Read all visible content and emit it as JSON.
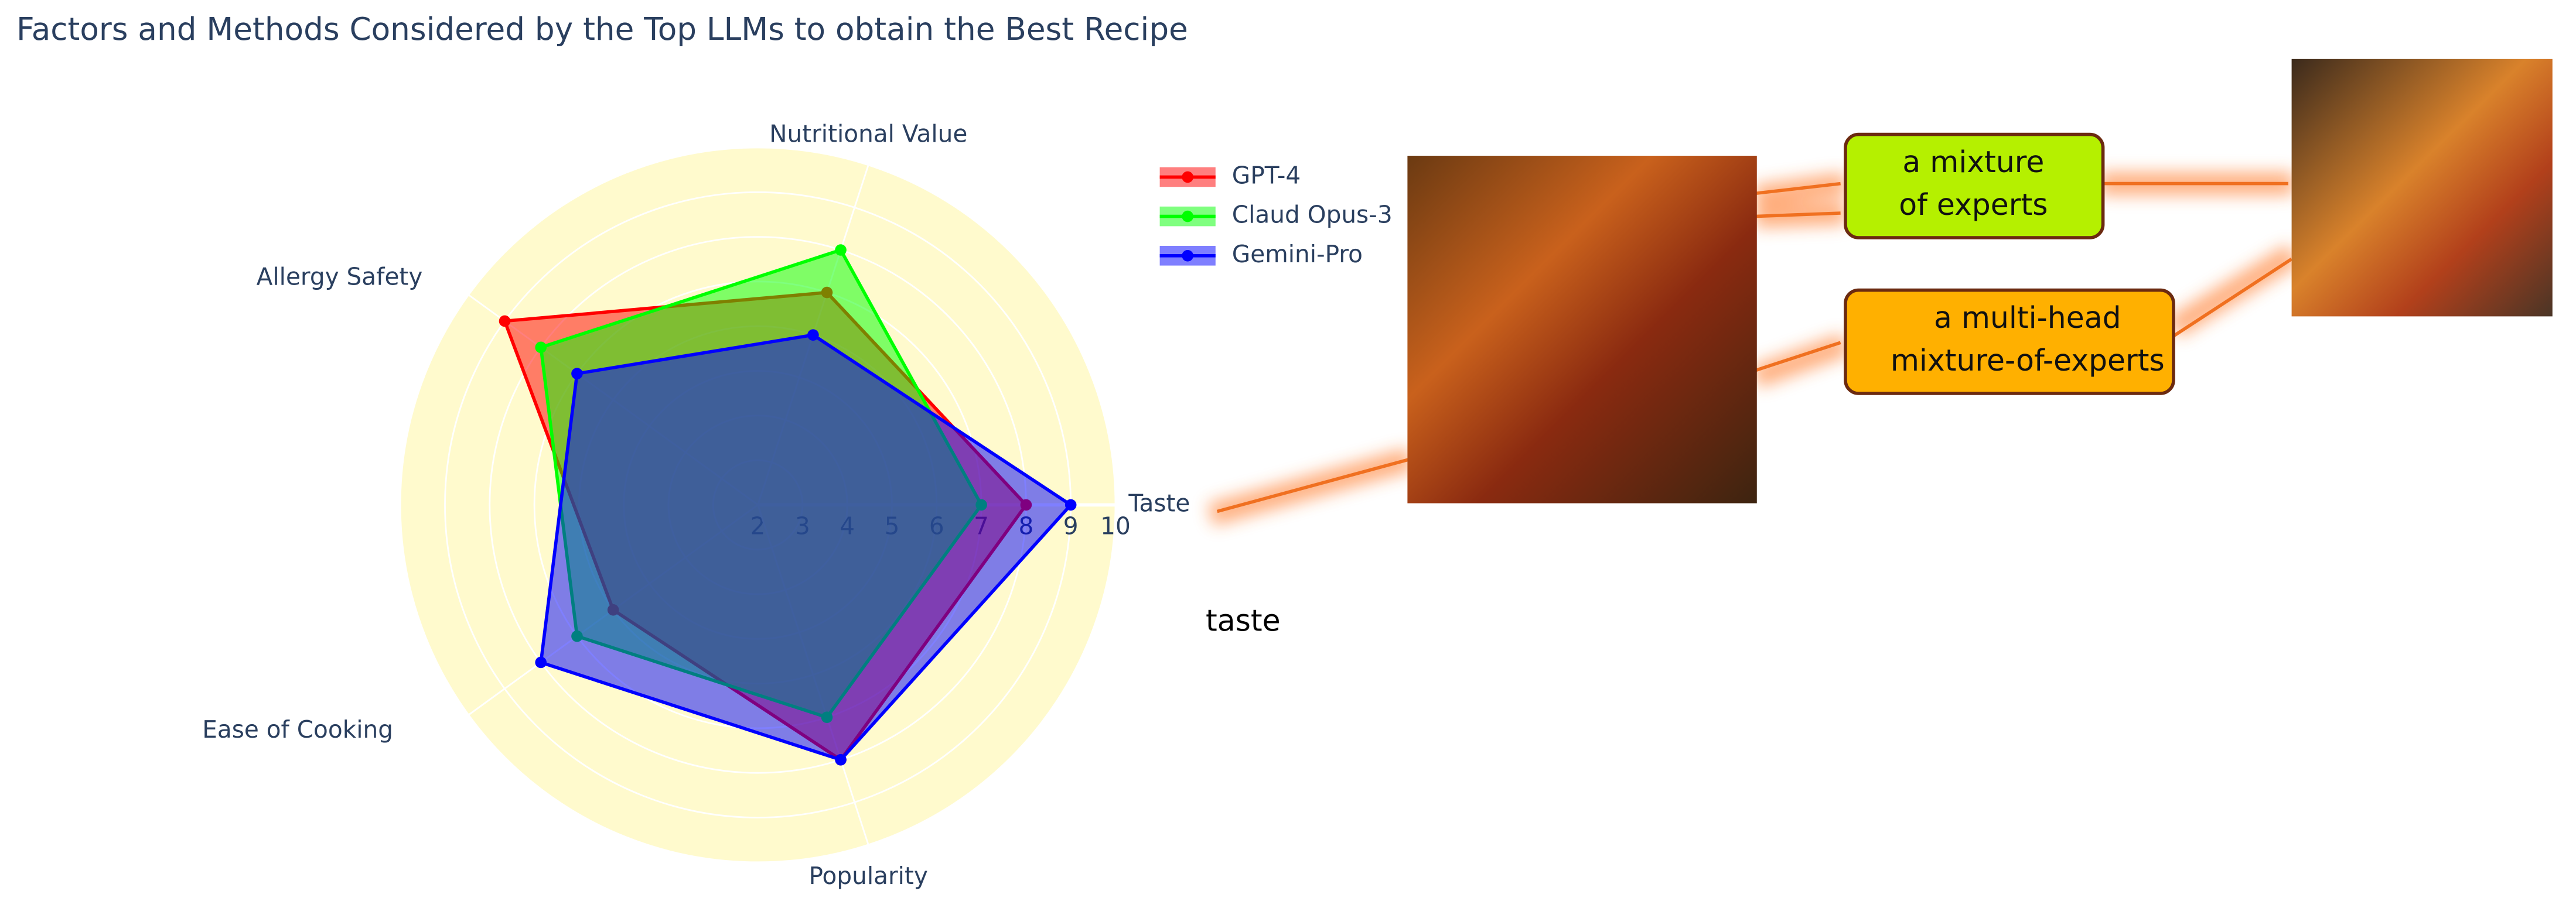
{
  "chart_data": {
    "type": "radar",
    "title": "Factors and Methods Considered by the Top LLMs to obtain the Best Recipe",
    "categories": [
      "Taste",
      "Nutritional Value",
      "Allergy Safety",
      "Ease of Cooking",
      "Popularity"
    ],
    "series": [
      {
        "name": "GPT-4",
        "color": "#ff0000",
        "values": [
          8,
          7,
          9,
          6,
          8
        ]
      },
      {
        "name": "Claud Opus-3",
        "color": "#00ff00",
        "values": [
          7,
          8,
          8,
          7,
          7
        ]
      },
      {
        "name": "Gemini-Pro",
        "color": "#0000ff",
        "values": [
          9,
          6,
          7,
          8,
          8
        ]
      }
    ],
    "rlim": [
      2,
      10
    ],
    "rticks": [
      2,
      3,
      4,
      5,
      6,
      7,
      8,
      9,
      10
    ],
    "background": "#fffacd",
    "grid": true,
    "legend": "top-right"
  },
  "diagram": {
    "note": "taste",
    "boxes": [
      "a mixture\nof experts",
      "a multi-head\nmixture-of-experts"
    ]
  }
}
